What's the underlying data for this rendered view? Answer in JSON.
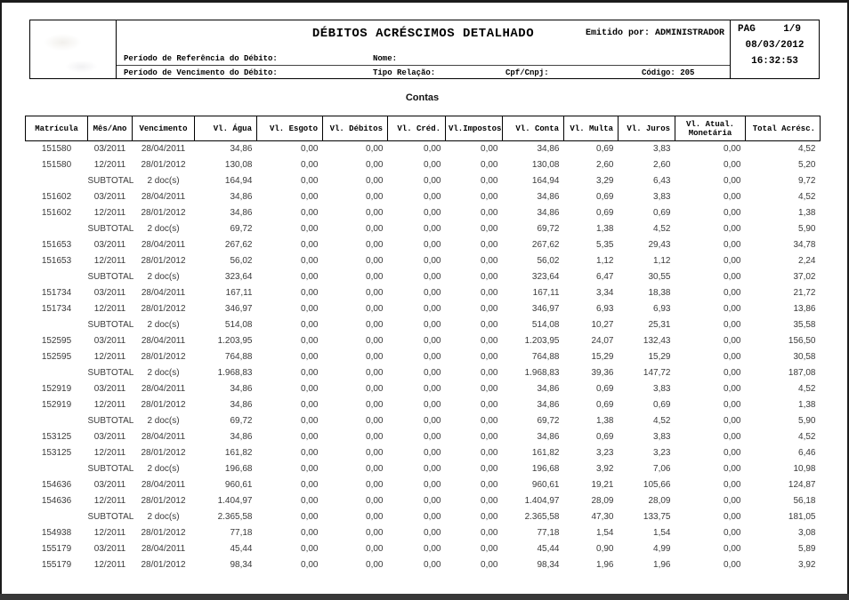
{
  "header": {
    "title": "DÉBITOS ACRÉSCIMOS DETALHADO",
    "emitted_by": "Emitido por: ADMINISTRADOR",
    "page_label": "PAG",
    "page_number": "1/9",
    "date": "08/03/2012",
    "time": "16:32:53",
    "fields": {
      "ref_period_label": "Período de Referência do Débito:",
      "due_period_label": "Período de Vencimento do Débito:",
      "name_label": "Nome:",
      "relation_type_label": "Tipo Relação:",
      "cpf_cnpj_label": "Cpf/Cnpj:",
      "code_label": "Código: 205"
    }
  },
  "section_title": "Contas",
  "table": {
    "columns": [
      "Matrícula",
      "Mês/Ano",
      "Vencimento",
      "Vl. Água",
      "Vl. Esgoto",
      "Vl. Débitos",
      "Vl. Créd.",
      "Vl.Impostos",
      "Vl. Conta",
      "Vl. Multa",
      "Vl. Juros",
      "Vl. Atual. Monetária",
      "Total Acrésc."
    ],
    "rows": [
      [
        "151580",
        "03/2011",
        "28/04/2011",
        "34,86",
        "0,00",
        "0,00",
        "0,00",
        "0,00",
        "34,86",
        "0,69",
        "3,83",
        "0,00",
        "4,52"
      ],
      [
        "151580",
        "12/2011",
        "28/01/2012",
        "130,08",
        "0,00",
        "0,00",
        "0,00",
        "0,00",
        "130,08",
        "2,60",
        "2,60",
        "0,00",
        "5,20"
      ],
      [
        "",
        "SUBTOTAL",
        "2 doc(s)",
        "164,94",
        "0,00",
        "0,00",
        "0,00",
        "0,00",
        "164,94",
        "3,29",
        "6,43",
        "0,00",
        "9,72"
      ],
      [
        "151602",
        "03/2011",
        "28/04/2011",
        "34,86",
        "0,00",
        "0,00",
        "0,00",
        "0,00",
        "34,86",
        "0,69",
        "3,83",
        "0,00",
        "4,52"
      ],
      [
        "151602",
        "12/2011",
        "28/01/2012",
        "34,86",
        "0,00",
        "0,00",
        "0,00",
        "0,00",
        "34,86",
        "0,69",
        "0,69",
        "0,00",
        "1,38"
      ],
      [
        "",
        "SUBTOTAL",
        "2 doc(s)",
        "69,72",
        "0,00",
        "0,00",
        "0,00",
        "0,00",
        "69,72",
        "1,38",
        "4,52",
        "0,00",
        "5,90"
      ],
      [
        "151653",
        "03/2011",
        "28/04/2011",
        "267,62",
        "0,00",
        "0,00",
        "0,00",
        "0,00",
        "267,62",
        "5,35",
        "29,43",
        "0,00",
        "34,78"
      ],
      [
        "151653",
        "12/2011",
        "28/01/2012",
        "56,02",
        "0,00",
        "0,00",
        "0,00",
        "0,00",
        "56,02",
        "1,12",
        "1,12",
        "0,00",
        "2,24"
      ],
      [
        "",
        "SUBTOTAL",
        "2 doc(s)",
        "323,64",
        "0,00",
        "0,00",
        "0,00",
        "0,00",
        "323,64",
        "6,47",
        "30,55",
        "0,00",
        "37,02"
      ],
      [
        "151734",
        "03/2011",
        "28/04/2011",
        "167,11",
        "0,00",
        "0,00",
        "0,00",
        "0,00",
        "167,11",
        "3,34",
        "18,38",
        "0,00",
        "21,72"
      ],
      [
        "151734",
        "12/2011",
        "28/01/2012",
        "346,97",
        "0,00",
        "0,00",
        "0,00",
        "0,00",
        "346,97",
        "6,93",
        "6,93",
        "0,00",
        "13,86"
      ],
      [
        "",
        "SUBTOTAL",
        "2 doc(s)",
        "514,08",
        "0,00",
        "0,00",
        "0,00",
        "0,00",
        "514,08",
        "10,27",
        "25,31",
        "0,00",
        "35,58"
      ],
      [
        "152595",
        "03/2011",
        "28/04/2011",
        "1.203,95",
        "0,00",
        "0,00",
        "0,00",
        "0,00",
        "1.203,95",
        "24,07",
        "132,43",
        "0,00",
        "156,50"
      ],
      [
        "152595",
        "12/2011",
        "28/01/2012",
        "764,88",
        "0,00",
        "0,00",
        "0,00",
        "0,00",
        "764,88",
        "15,29",
        "15,29",
        "0,00",
        "30,58"
      ],
      [
        "",
        "SUBTOTAL",
        "2 doc(s)",
        "1.968,83",
        "0,00",
        "0,00",
        "0,00",
        "0,00",
        "1.968,83",
        "39,36",
        "147,72",
        "0,00",
        "187,08"
      ],
      [
        "152919",
        "03/2011",
        "28/04/2011",
        "34,86",
        "0,00",
        "0,00",
        "0,00",
        "0,00",
        "34,86",
        "0,69",
        "3,83",
        "0,00",
        "4,52"
      ],
      [
        "152919",
        "12/2011",
        "28/01/2012",
        "34,86",
        "0,00",
        "0,00",
        "0,00",
        "0,00",
        "34,86",
        "0,69",
        "0,69",
        "0,00",
        "1,38"
      ],
      [
        "",
        "SUBTOTAL",
        "2 doc(s)",
        "69,72",
        "0,00",
        "0,00",
        "0,00",
        "0,00",
        "69,72",
        "1,38",
        "4,52",
        "0,00",
        "5,90"
      ],
      [
        "153125",
        "03/2011",
        "28/04/2011",
        "34,86",
        "0,00",
        "0,00",
        "0,00",
        "0,00",
        "34,86",
        "0,69",
        "3,83",
        "0,00",
        "4,52"
      ],
      [
        "153125",
        "12/2011",
        "28/01/2012",
        "161,82",
        "0,00",
        "0,00",
        "0,00",
        "0,00",
        "161,82",
        "3,23",
        "3,23",
        "0,00",
        "6,46"
      ],
      [
        "",
        "SUBTOTAL",
        "2 doc(s)",
        "196,68",
        "0,00",
        "0,00",
        "0,00",
        "0,00",
        "196,68",
        "3,92",
        "7,06",
        "0,00",
        "10,98"
      ],
      [
        "154636",
        "03/2011",
        "28/04/2011",
        "960,61",
        "0,00",
        "0,00",
        "0,00",
        "0,00",
        "960,61",
        "19,21",
        "105,66",
        "0,00",
        "124,87"
      ],
      [
        "154636",
        "12/2011",
        "28/01/2012",
        "1.404,97",
        "0,00",
        "0,00",
        "0,00",
        "0,00",
        "1.404,97",
        "28,09",
        "28,09",
        "0,00",
        "56,18"
      ],
      [
        "",
        "SUBTOTAL",
        "2 doc(s)",
        "2.365,58",
        "0,00",
        "0,00",
        "0,00",
        "0,00",
        "2.365,58",
        "47,30",
        "133,75",
        "0,00",
        "181,05"
      ],
      [
        "154938",
        "12/2011",
        "28/01/2012",
        "77,18",
        "0,00",
        "0,00",
        "0,00",
        "0,00",
        "77,18",
        "1,54",
        "1,54",
        "0,00",
        "3,08"
      ],
      [
        "155179",
        "03/2011",
        "28/04/2011",
        "45,44",
        "0,00",
        "0,00",
        "0,00",
        "0,00",
        "45,44",
        "0,90",
        "4,99",
        "0,00",
        "5,89"
      ],
      [
        "155179",
        "12/2011",
        "28/01/2012",
        "98,34",
        "0,00",
        "0,00",
        "0,00",
        "0,00",
        "98,34",
        "1,96",
        "1,96",
        "0,00",
        "3,92"
      ]
    ]
  }
}
